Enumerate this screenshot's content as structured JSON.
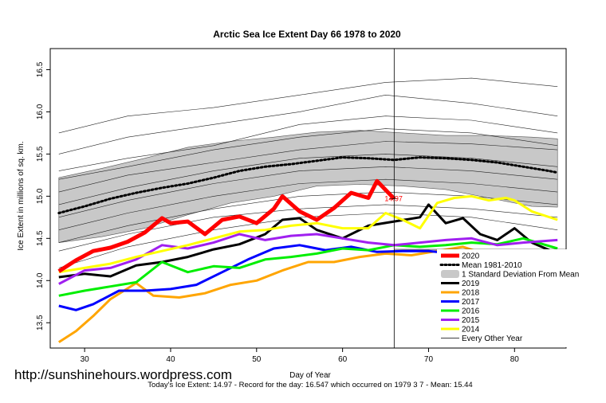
{
  "chart_data": {
    "type": "line",
    "title": "Arctic Sea Ice Extent Day 66 1978 to 2020",
    "xlabel": "Day of Year",
    "ylabel": "Ice Extent in millions of sq. km.",
    "xlim": [
      26,
      86
    ],
    "ylim": [
      13.2,
      16.75
    ],
    "xticks": [
      30,
      40,
      50,
      60,
      70,
      80
    ],
    "yticks": [
      13.5,
      14.0,
      14.5,
      15.0,
      15.5,
      16.0,
      16.5
    ],
    "current_day": 66,
    "current_value_label": "14.97",
    "watermark": "http://sunshinehours.wordpress.com",
    "footer": "Today's Ice Extent: 14.97  - Record for the day: 16.547 which occurred on 1979 3 7  - Mean: 15.44",
    "legend": [
      {
        "label": "2020",
        "color": "#ff0000",
        "style": "thick"
      },
      {
        "label": "Mean 1981-2010",
        "color": "#000000",
        "style": "dotted"
      },
      {
        "label": "1 Standard Deviation From Mean",
        "color": "#c8c8c8",
        "style": "band"
      },
      {
        "label": "2019",
        "color": "#000000",
        "style": "line"
      },
      {
        "label": "2018",
        "color": "#ffa500",
        "style": "line"
      },
      {
        "label": "2017",
        "color": "#0000ff",
        "style": "line"
      },
      {
        "label": "2016",
        "color": "#00ee00",
        "style": "line"
      },
      {
        "label": "2015",
        "color": "#a020f0",
        "style": "line"
      },
      {
        "label": "2014",
        "color": "#ffff00",
        "style": "line"
      },
      {
        "label": "Every Other Year",
        "color": "#000000",
        "style": "thin"
      }
    ],
    "mean": {
      "x": [
        27,
        30,
        33,
        36,
        39,
        42,
        45,
        48,
        51,
        54,
        57,
        60,
        63,
        66,
        69,
        72,
        75,
        78,
        81,
        84,
        85
      ],
      "values": [
        14.8,
        14.88,
        14.97,
        15.04,
        15.1,
        15.15,
        15.22,
        15.3,
        15.35,
        15.38,
        15.42,
        15.46,
        15.45,
        15.43,
        15.46,
        15.45,
        15.43,
        15.4,
        15.35,
        15.3,
        15.28
      ]
    },
    "std_band": {
      "x": [
        27,
        32,
        37,
        42,
        47,
        52,
        57,
        62,
        67,
        72,
        77,
        82,
        85
      ],
      "upper": [
        15.22,
        15.33,
        15.45,
        15.58,
        15.65,
        15.7,
        15.76,
        15.78,
        15.75,
        15.72,
        15.72,
        15.7,
        15.68
      ],
      "lower": [
        14.45,
        14.52,
        14.62,
        14.78,
        14.92,
        15.0,
        15.12,
        15.14,
        15.12,
        15.08,
        14.98,
        14.88,
        14.87
      ]
    },
    "series": [
      {
        "name": "2020",
        "color": "#ff0000",
        "width": 5,
        "x": [
          27,
          29,
          31,
          33,
          35,
          37,
          39,
          40,
          42,
          44,
          46,
          48,
          50,
          52,
          53,
          55,
          57,
          59,
          61,
          63,
          64,
          66
        ],
        "values": [
          14.11,
          14.24,
          14.35,
          14.39,
          14.46,
          14.57,
          14.74,
          14.68,
          14.7,
          14.55,
          14.72,
          14.76,
          14.68,
          14.85,
          15.0,
          14.82,
          14.72,
          14.86,
          15.04,
          14.98,
          15.18,
          14.97
        ]
      },
      {
        "name": "2019",
        "color": "#000000",
        "width": 3,
        "x": [
          27,
          30,
          33,
          36,
          39,
          42,
          45,
          48,
          51,
          53,
          55,
          57,
          60,
          63,
          66,
          69,
          70,
          72,
          74,
          76,
          78,
          80,
          82,
          85
        ],
        "values": [
          14.04,
          14.08,
          14.05,
          14.18,
          14.22,
          14.28,
          14.37,
          14.43,
          14.55,
          14.72,
          14.74,
          14.6,
          14.5,
          14.65,
          14.7,
          14.75,
          14.9,
          14.68,
          14.74,
          14.55,
          14.48,
          14.62,
          14.45,
          14.32
        ]
      },
      {
        "name": "2018",
        "color": "#ffa500",
        "width": 3,
        "x": [
          27,
          29,
          31,
          33,
          36,
          38,
          41,
          44,
          47,
          50,
          53,
          56,
          59,
          62,
          65,
          68,
          71,
          74,
          77,
          80,
          83,
          85
        ],
        "values": [
          13.27,
          13.4,
          13.58,
          13.78,
          13.97,
          13.82,
          13.8,
          13.85,
          13.95,
          14.0,
          14.12,
          14.22,
          14.22,
          14.28,
          14.32,
          14.3,
          14.35,
          14.4,
          14.3,
          14.24,
          14.18,
          14.22
        ]
      },
      {
        "name": "2017",
        "color": "#0000ff",
        "width": 3,
        "x": [
          27,
          29,
          31,
          34,
          37,
          40,
          43,
          46,
          49,
          52,
          55,
          58,
          61,
          64,
          67,
          70,
          73,
          76,
          79,
          82,
          85
        ],
        "values": [
          13.7,
          13.65,
          13.72,
          13.88,
          13.88,
          13.9,
          13.95,
          14.1,
          14.25,
          14.38,
          14.42,
          14.36,
          14.4,
          14.34,
          14.35,
          14.35,
          14.32,
          14.28,
          14.22,
          14.12,
          14.2
        ]
      },
      {
        "name": "2016",
        "color": "#00ee00",
        "width": 3,
        "x": [
          27,
          30,
          33,
          36,
          39,
          42,
          45,
          48,
          51,
          54,
          57,
          60,
          63,
          66,
          69,
          72,
          75,
          78,
          81,
          85
        ],
        "values": [
          13.82,
          13.88,
          13.93,
          13.98,
          14.22,
          14.1,
          14.17,
          14.15,
          14.25,
          14.28,
          14.32,
          14.38,
          14.36,
          14.42,
          14.4,
          14.42,
          14.45,
          14.43,
          14.5,
          14.38
        ]
      },
      {
        "name": "2015",
        "color": "#a020f0",
        "width": 3,
        "x": [
          27,
          30,
          33,
          36,
          39,
          42,
          45,
          48,
          51,
          54,
          57,
          60,
          63,
          66,
          69,
          72,
          75,
          78,
          81,
          85
        ],
        "values": [
          13.96,
          14.12,
          14.15,
          14.25,
          14.42,
          14.38,
          14.45,
          14.55,
          14.48,
          14.53,
          14.55,
          14.5,
          14.45,
          14.42,
          14.45,
          14.48,
          14.5,
          14.42,
          14.45,
          14.48
        ]
      },
      {
        "name": "2014",
        "color": "#ffff00",
        "width": 3,
        "x": [
          27,
          30,
          33,
          36,
          39,
          42,
          45,
          48,
          51,
          54,
          57,
          60,
          63,
          65,
          67,
          69,
          71,
          73,
          75,
          77,
          79,
          80,
          82,
          85
        ],
        "values": [
          14.1,
          14.15,
          14.2,
          14.28,
          14.35,
          14.42,
          14.5,
          14.58,
          14.6,
          14.65,
          14.68,
          14.62,
          14.62,
          14.8,
          14.72,
          14.62,
          14.92,
          14.98,
          15.0,
          14.95,
          14.98,
          14.95,
          14.82,
          14.72
        ]
      }
    ],
    "every_other_year_lines": [
      {
        "x": [
          27,
          35,
          45,
          55,
          65,
          75,
          85
        ],
        "values": [
          15.75,
          15.95,
          16.05,
          16.2,
          16.35,
          16.4,
          16.3
        ]
      },
      {
        "x": [
          27,
          35,
          45,
          55,
          65,
          75,
          85
        ],
        "values": [
          15.5,
          15.7,
          15.85,
          16.0,
          16.2,
          16.1,
          15.95
        ]
      },
      {
        "x": [
          27,
          35,
          45,
          55,
          65,
          75,
          85
        ],
        "values": [
          15.3,
          15.45,
          15.6,
          15.85,
          15.95,
          15.9,
          15.75
        ]
      },
      {
        "x": [
          27,
          35,
          45,
          55,
          65,
          75,
          85
        ],
        "values": [
          15.2,
          15.35,
          15.55,
          15.7,
          15.8,
          15.75,
          15.6
        ]
      },
      {
        "x": [
          27,
          35,
          45,
          55,
          65,
          75,
          85
        ],
        "values": [
          15.05,
          15.25,
          15.4,
          15.55,
          15.65,
          15.62,
          15.55
        ]
      },
      {
        "x": [
          27,
          35,
          45,
          55,
          65,
          75,
          85
        ],
        "values": [
          14.9,
          15.1,
          15.3,
          15.45,
          15.5,
          15.45,
          15.35
        ]
      },
      {
        "x": [
          27,
          35,
          45,
          55,
          65,
          75,
          85
        ],
        "values": [
          14.75,
          14.95,
          15.15,
          15.3,
          15.35,
          15.3,
          15.2
        ]
      },
      {
        "x": [
          27,
          35,
          45,
          55,
          65,
          75,
          85
        ],
        "values": [
          14.6,
          14.8,
          15.0,
          15.15,
          15.2,
          15.15,
          15.05
        ]
      },
      {
        "x": [
          27,
          35,
          45,
          55,
          65,
          75,
          85
        ],
        "values": [
          14.45,
          14.65,
          14.85,
          15.0,
          15.05,
          15.0,
          14.9
        ]
      },
      {
        "x": [
          27,
          35,
          45,
          55,
          65,
          75,
          85
        ],
        "values": [
          14.35,
          14.55,
          14.75,
          14.85,
          14.9,
          14.85,
          14.75
        ]
      },
      {
        "x": [
          27,
          35,
          45,
          55,
          65,
          75,
          85
        ],
        "values": [
          14.15,
          14.4,
          14.6,
          14.75,
          14.8,
          14.75,
          14.6
        ]
      }
    ]
  }
}
